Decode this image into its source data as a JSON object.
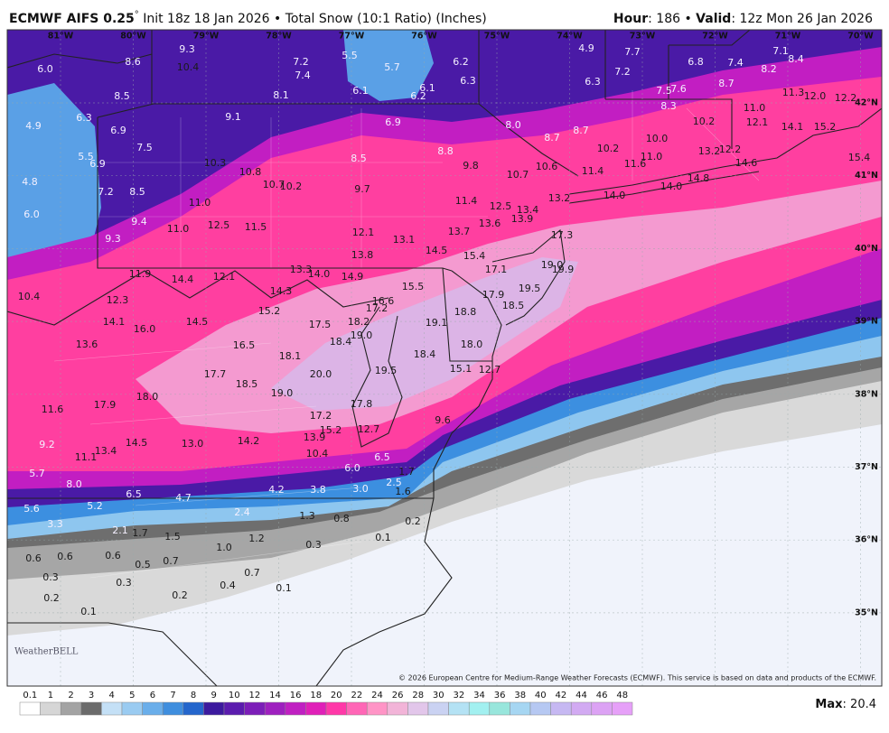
{
  "header": {
    "title_main": "ECMWF AIFS 0.25",
    "title_deg": "°",
    "title_rest": " Init 18z 18 Jan 2026 • Total Snow (10:1 Ratio) (Inches)",
    "hour_label": "Hour",
    "hour_text": ": 186 • ",
    "valid_label": "Valid",
    "valid_text": ": 12z Mon 26 Jan 2026"
  },
  "map": {
    "lon_labels": [
      "81°W",
      "80°W",
      "79°W",
      "78°W",
      "77°W",
      "76°W",
      "75°W",
      "74°W",
      "73°W",
      "72°W",
      "71°W",
      "70°W"
    ],
    "lat_labels": [
      "42°N",
      "41°N",
      "40°N",
      "39°N",
      "38°N",
      "37°N",
      "36°N",
      "35°N"
    ],
    "values": [
      "9.3",
      "8.6",
      "10.4",
      "6.0",
      "7.2",
      "5.5",
      "5.7",
      "6.2",
      "4.9",
      "7.7",
      "6.8",
      "7.4",
      "7.1",
      "8.4",
      "8.2",
      "7.4",
      "6.3",
      "7.2",
      "6.3",
      "8.1",
      "6.1",
      "6.1",
      "6.2",
      "8.5",
      "7.5",
      "7.6",
      "8.7",
      "11.3",
      "12.0",
      "12.2",
      "6.3",
      "9.1",
      "6.9",
      "8.3",
      "11.0",
      "4.9",
      "6.9",
      "8.0",
      "8.7",
      "8.7",
      "10.2",
      "12.1",
      "14.1",
      "15.2",
      "7.5",
      "10.0",
      "10.2",
      "5.5",
      "8.5",
      "8.8",
      "11.6",
      "11.0",
      "13.2",
      "12.2",
      "14.6",
      "15.4",
      "6.9",
      "10.3",
      "9.8",
      "10.6",
      "11.4",
      "10.7",
      "10.8",
      "4.8",
      "10.7",
      "10.2",
      "9.7",
      "14.0",
      "14.0",
      "14.8",
      "7.2",
      "8.5",
      "11.0",
      "11.4",
      "13.2",
      "12.5",
      "13.4",
      "6.0",
      "13.9",
      "13.6",
      "9.4",
      "11.0",
      "12.5",
      "11.5",
      "12.1",
      "13.7",
      "13.1",
      "17.3",
      "9.3",
      "14.5",
      "13.8",
      "15.4",
      "19.0",
      "19.9",
      "17.1",
      "13.3",
      "14.0",
      "14.9",
      "11.9",
      "14.4",
      "12.1",
      "15.5",
      "16.6",
      "17.2",
      "19.5",
      "17.9",
      "18.5",
      "14.3",
      "10.4",
      "12.3",
      "15.2",
      "18.8",
      "19.1",
      "17.5",
      "18.2",
      "14.1",
      "16.0",
      "14.5",
      "19.0",
      "18.4",
      "18.0",
      "13.6",
      "16.5",
      "18.1",
      "18.4",
      "15.1",
      "12.7",
      "19.5",
      "20.0",
      "17.7",
      "18.5",
      "19.0",
      "18.0",
      "17.9",
      "17.8",
      "11.6",
      "17.2",
      "9.6",
      "15.2",
      "12.7",
      "13.9",
      "14.5",
      "13.0",
      "14.2",
      "9.2",
      "13.4",
      "11.1",
      "10.4",
      "6.5",
      "6.0",
      "5.7",
      "8.0",
      "1.7",
      "2.5",
      "4.2",
      "3.8",
      "3.0",
      "1.6",
      "6.5",
      "4.7",
      "5.6",
      "5.2",
      "2.4",
      "1.3",
      "0.8",
      "0.2",
      "3.3",
      "2.1",
      "1.7",
      "1.5",
      "1.2",
      "0.1",
      "0.3",
      "1.0",
      "0.6",
      "0.6",
      "0.6",
      "0.5",
      "0.7",
      "0.7",
      "0.3",
      "0.3",
      "0.4",
      "0.1",
      "0.2",
      "0.2",
      "0.1"
    ],
    "logo": "WeatherBELL",
    "copyright": "© 2026 European Centre for Medium-Range Weather Forecasts (ECMWF). This service is based on data and products of the ECMWF."
  },
  "legend": {
    "labels": [
      "0.1",
      "1",
      "2",
      "3",
      "4",
      "5",
      "6",
      "7",
      "8",
      "9",
      "10",
      "12",
      "14",
      "16",
      "18",
      "20",
      "22",
      "24",
      "26",
      "28",
      "30",
      "32",
      "34",
      "36",
      "38",
      "40",
      "42",
      "44",
      "46",
      "48"
    ],
    "colors": [
      "#ffffff",
      "#d6d6d6",
      "#a3a3a3",
      "#6b6b6b",
      "#c4e0f6",
      "#9acbf1",
      "#6aaeea",
      "#3f8ede",
      "#2466cc",
      "#3c1a9e",
      "#5b1cae",
      "#7c1eb8",
      "#9e20bf",
      "#c020c2",
      "#e020b8",
      "#ff38a8",
      "#ff66b6",
      "#ff94c6",
      "#f2b4d8",
      "#e2c6ea",
      "#cad2f2",
      "#b4e2f4",
      "#a2f0f0",
      "#98e6dc",
      "#a6d6f2",
      "#b6c8f2",
      "#c6b8f2",
      "#d2aaf2",
      "#dca2f4",
      "#e6a0f8"
    ],
    "max_label": "Max",
    "max_text": ": 20.4"
  }
}
